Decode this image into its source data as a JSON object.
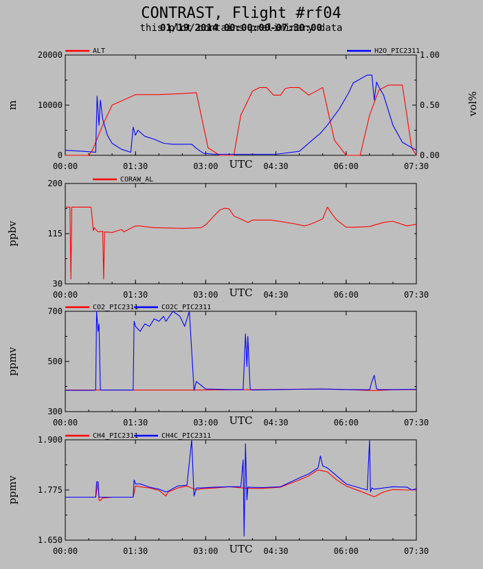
{
  "title": "CONTRAST, Flight #rf04",
  "subtitle_a": "01/19/2014 00:00:00-07:30:00",
  "subtitle_b": "this plot contains preliminary data",
  "colors": {
    "red": "#ff0000",
    "blue": "#0000ff",
    "bg": "#bebebe",
    "axis": "#000000"
  },
  "chart_data": [
    {
      "type": "line",
      "xlabel": "UTC",
      "xticks": [
        "00:00",
        "01:30",
        "03:00",
        "04:30",
        "06:00",
        "07:30"
      ],
      "xlim": [
        0,
        7.5
      ],
      "ylabel": "m",
      "ylim": [
        0,
        20000
      ],
      "yticks": [
        "0",
        "10000",
        "20000"
      ],
      "ylabel_right": "vol%",
      "ylim_right": [
        0,
        1
      ],
      "yticks_right": [
        "0.00",
        "0.50",
        "1.00"
      ],
      "series": [
        {
          "name": "ALT",
          "color": "#ff0000",
          "axis": "left",
          "x": [
            0,
            0.5,
            0.58,
            0.8,
            1.0,
            1.5,
            2.0,
            2.5,
            2.8,
            3.05,
            3.3,
            3.6,
            3.75,
            4.0,
            4.15,
            4.3,
            4.45,
            4.6,
            4.7,
            4.8,
            5.0,
            5.2,
            5.3,
            5.5,
            5.75,
            6.0,
            6.1,
            6.3,
            6.5,
            6.7,
            6.9,
            7.0,
            7.2,
            7.4,
            7.5
          ],
          "y": [
            0,
            0,
            1000,
            6000,
            10000,
            12100,
            12100,
            12300,
            12500,
            1500,
            0,
            0,
            8000,
            12800,
            13500,
            13500,
            12000,
            12000,
            13300,
            13500,
            13500,
            12000,
            12500,
            13500,
            3000,
            0,
            0,
            0,
            8000,
            13000,
            14000,
            14000,
            14000,
            1500,
            0
          ]
        },
        {
          "name": "H2O_PIC2311",
          "color": "#0000ff",
          "axis": "right",
          "x": [
            0,
            0.4,
            0.65,
            0.68,
            0.72,
            0.75,
            0.8,
            0.9,
            1.0,
            1.2,
            1.4,
            1.45,
            1.5,
            1.55,
            1.7,
            1.9,
            2.1,
            2.3,
            2.5,
            2.7,
            2.8,
            2.95,
            3.2,
            3.5,
            4.0,
            4.5,
            5.0,
            5.3,
            5.45,
            5.6,
            5.85,
            6.05,
            6.15,
            6.3,
            6.45,
            6.55,
            6.6,
            6.65,
            6.7,
            6.8,
            6.9,
            7.0,
            7.2,
            7.5
          ],
          "y": [
            0.05,
            0.04,
            0.03,
            0.59,
            0.3,
            0.55,
            0.36,
            0.2,
            0.12,
            0.06,
            0.03,
            0.28,
            0.2,
            0.25,
            0.19,
            0.16,
            0.12,
            0.11,
            0.11,
            0.11,
            0.07,
            0.02,
            0.01,
            0.01,
            0.01,
            0.01,
            0.04,
            0.16,
            0.22,
            0.3,
            0.46,
            0.62,
            0.72,
            0.76,
            0.8,
            0.8,
            0.55,
            0.73,
            0.68,
            0.6,
            0.45,
            0.3,
            0.13,
            0.05
          ]
        }
      ]
    },
    {
      "type": "line",
      "xlabel": "UTC",
      "xticks": [
        "00:00",
        "01:30",
        "03:00",
        "04:30",
        "06:00",
        "07:30"
      ],
      "xlim": [
        0,
        7.5
      ],
      "ylabel": "ppbv",
      "ylim": [
        30,
        200
      ],
      "yticks": [
        "30",
        "115",
        "200"
      ],
      "series": [
        {
          "name": "CORAW_AL",
          "color": "#ff0000",
          "axis": "left",
          "x": [
            0,
            0.1,
            0.12,
            0.14,
            0.4,
            0.55,
            0.6,
            0.62,
            0.7,
            0.8,
            0.82,
            0.84,
            1.0,
            1.2,
            1.25,
            1.5,
            1.6,
            1.9,
            2.0,
            2.5,
            2.9,
            3.0,
            3.3,
            3.4,
            3.5,
            3.6,
            3.8,
            3.9,
            4.0,
            4.4,
            4.8,
            5.0,
            5.1,
            5.2,
            5.3,
            5.5,
            5.6,
            5.7,
            5.8,
            6.0,
            6.2,
            6.5,
            6.8,
            7.0,
            7.3,
            7.5
          ],
          "y": [
            160,
            160,
            38,
            160,
            160,
            160,
            120,
            125,
            118,
            119,
            38,
            118,
            117,
            122,
            118,
            128,
            128,
            125,
            125,
            124,
            125,
            130,
            155,
            158,
            157,
            145,
            138,
            134,
            138,
            138,
            133,
            130,
            128,
            130,
            133,
            140,
            160,
            148,
            138,
            126,
            126,
            127,
            134,
            136,
            128,
            131
          ]
        }
      ]
    },
    {
      "type": "line",
      "xlabel": "UTC",
      "xticks": [
        "00:00",
        "01:30",
        "03:00",
        "04:30",
        "06:00",
        "07:30"
      ],
      "xlim": [
        0,
        7.5
      ],
      "ylabel": "ppmv",
      "ylim": [
        300,
        700
      ],
      "yticks": [
        "300",
        "500",
        "700"
      ],
      "series": [
        {
          "name": "CO2_PIC2311",
          "color": "#ff0000",
          "axis": "left",
          "x": [
            0,
            0.65,
            1.45,
            2.75,
            3.8,
            5.5,
            6.0,
            6.6,
            7.0,
            7.5
          ],
          "y": [
            386,
            386,
            386,
            386,
            387,
            390,
            388,
            384,
            387,
            388
          ]
        },
        {
          "name": "CO2C_PIC2311",
          "color": "#0000ff",
          "axis": "left",
          "x": [
            0,
            0.6,
            0.65,
            0.67,
            0.7,
            0.72,
            0.75,
            1.45,
            1.47,
            1.5,
            1.6,
            1.7,
            1.8,
            1.9,
            2.0,
            2.1,
            2.15,
            2.3,
            2.45,
            2.55,
            2.65,
            2.75,
            2.8,
            3.0,
            3.5,
            3.8,
            3.85,
            3.88,
            3.9,
            3.95,
            4.0,
            4.5,
            5.0,
            5.5,
            6.0,
            6.5,
            6.55,
            6.6,
            6.65,
            6.7,
            7.0,
            7.5
          ],
          "y": [
            385,
            385,
            386,
            700,
            620,
            650,
            386,
            386,
            660,
            640,
            620,
            650,
            640,
            670,
            660,
            680,
            660,
            700,
            680,
            640,
            700,
            385,
            420,
            390,
            388,
            388,
            610,
            480,
            600,
            390,
            386,
            388,
            389,
            390,
            388,
            387,
            420,
            445,
            390,
            388,
            388,
            389
          ]
        }
      ]
    },
    {
      "type": "line",
      "xlabel": "UTC",
      "xticks": [
        "00:00",
        "01:30",
        "03:00",
        "04:30",
        "06:00",
        "07:30"
      ],
      "xlim": [
        0,
        7.5
      ],
      "ylabel": "ppmv",
      "ylim": [
        1.65,
        1.9
      ],
      "yticks": [
        "1.650",
        "1.775",
        "1.900"
      ],
      "series": [
        {
          "name": "CH4_PIC2311",
          "color": "#ff0000",
          "axis": "left",
          "x": [
            0,
            0.65,
            0.7,
            0.72,
            0.74,
            0.8,
            1.0,
            1.45,
            1.5,
            1.6,
            1.8,
            2.0,
            2.15,
            2.2,
            2.4,
            2.6,
            2.8,
            2.9,
            3.2,
            3.5,
            3.9,
            4.2,
            4.6,
            5.0,
            5.2,
            5.4,
            5.6,
            5.8,
            6.0,
            6.3,
            6.45,
            6.6,
            6.8,
            7.0,
            7.3,
            7.5
          ],
          "y": [
            1.757,
            1.757,
            1.795,
            1.75,
            1.748,
            1.755,
            1.757,
            1.757,
            1.785,
            1.783,
            1.78,
            1.774,
            1.76,
            1.77,
            1.78,
            1.785,
            1.775,
            1.778,
            1.78,
            1.783,
            1.779,
            1.779,
            1.782,
            1.8,
            1.81,
            1.825,
            1.82,
            1.8,
            1.785,
            1.772,
            1.765,
            1.758,
            1.77,
            1.776,
            1.775,
            1.775
          ]
        },
        {
          "name": "CH4C_PIC2311",
          "color": "#0000ff",
          "axis": "left",
          "x": [
            0,
            0.65,
            0.67,
            0.7,
            0.72,
            0.75,
            1.0,
            1.45,
            1.47,
            1.5,
            1.6,
            1.8,
            2.0,
            2.15,
            2.2,
            2.4,
            2.6,
            2.7,
            2.75,
            2.8,
            2.9,
            3.2,
            3.5,
            3.75,
            3.8,
            3.82,
            3.85,
            3.88,
            3.9,
            4.2,
            4.6,
            5.0,
            5.2,
            5.4,
            5.45,
            5.5,
            5.6,
            5.8,
            6.0,
            6.3,
            6.45,
            6.5,
            6.52,
            6.55,
            6.6,
            6.8,
            7.0,
            7.3,
            7.4,
            7.5
          ],
          "y": [
            1.757,
            1.757,
            1.795,
            1.795,
            1.757,
            1.757,
            1.757,
            1.757,
            1.8,
            1.79,
            1.79,
            1.782,
            1.777,
            1.77,
            1.772,
            1.785,
            1.787,
            1.9,
            1.76,
            1.78,
            1.78,
            1.782,
            1.783,
            1.783,
            1.85,
            1.66,
            1.89,
            1.75,
            1.782,
            1.781,
            1.783,
            1.805,
            1.815,
            1.83,
            1.86,
            1.835,
            1.83,
            1.81,
            1.79,
            1.78,
            1.775,
            1.9,
            1.77,
            1.78,
            1.777,
            1.78,
            1.783,
            1.782,
            1.775,
            1.778
          ]
        }
      ]
    }
  ]
}
